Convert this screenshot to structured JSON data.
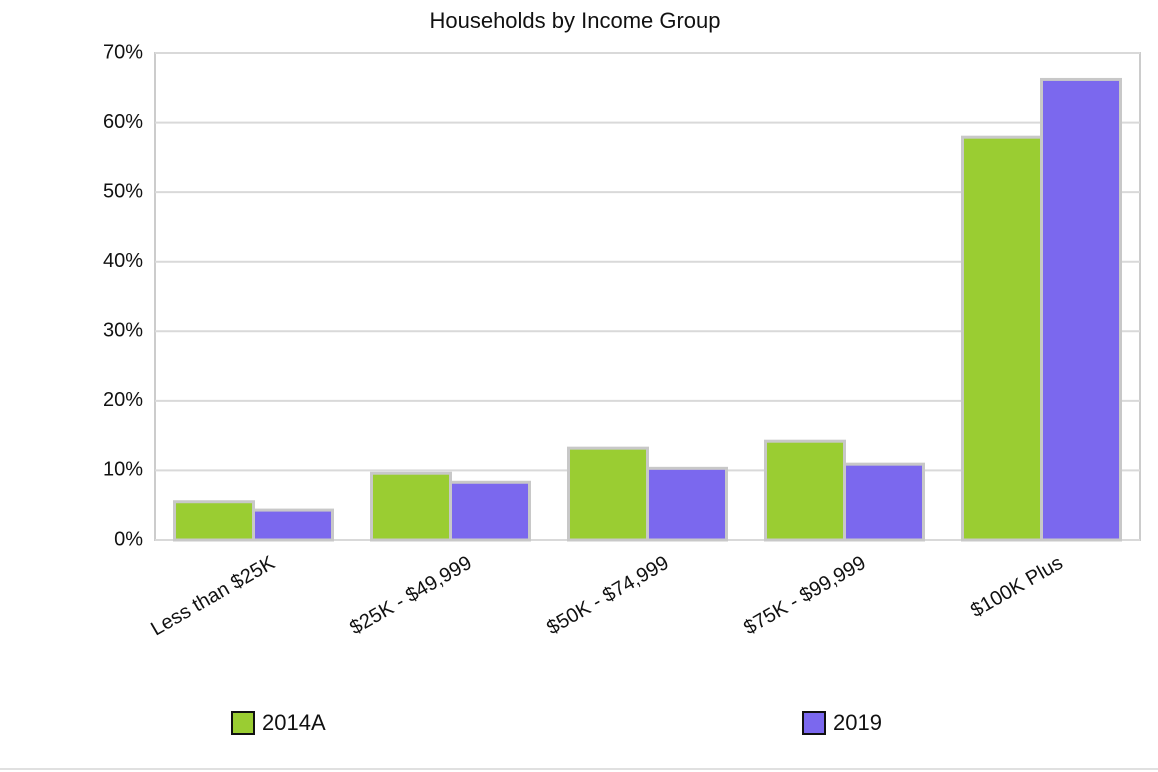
{
  "chart_data": {
    "type": "bar",
    "title": "Households by Income Group",
    "categories": [
      "Less than $25K",
      "$25K - $49,999",
      "$50K - $74,999",
      "$75K - $99,999",
      "$100K Plus"
    ],
    "series": [
      {
        "name": "2014A",
        "color": "#9acd32",
        "values": [
          5.5,
          9.6,
          13.2,
          14.2,
          57.9
        ]
      },
      {
        "name": "2019",
        "color": "#7b68ee",
        "values": [
          4.3,
          8.3,
          10.3,
          10.9,
          66.2
        ]
      }
    ],
    "ylim": [
      0,
      70
    ],
    "yticks": [
      {
        "value": 0,
        "label": "0%"
      },
      {
        "value": 10,
        "label": "10%"
      },
      {
        "value": 20,
        "label": "20%"
      },
      {
        "value": 30,
        "label": "30%"
      },
      {
        "value": 40,
        "label": "40%"
      },
      {
        "value": 50,
        "label": "50%"
      },
      {
        "value": 60,
        "label": "60%"
      },
      {
        "value": 70,
        "label": "70%"
      }
    ],
    "grid": true,
    "legend": "bottom"
  }
}
